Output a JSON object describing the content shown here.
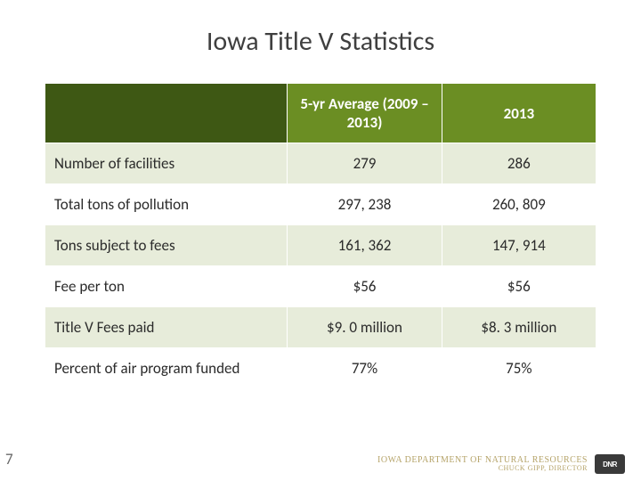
{
  "title": "Iowa Title V Statistics",
  "page_number": "7",
  "table": {
    "header_bg": "#6b8e23",
    "header_blank_bg": "#3e5814",
    "row_alt_bg_light": "#e7ecda",
    "row_alt_bg_white": "#ffffff",
    "border_color": "#ffffff",
    "title_fontsize": 30,
    "header_fontsize": 17,
    "cell_fontsize": 17,
    "columns": [
      {
        "label": "",
        "key": "label"
      },
      {
        "label": "5-yr Average (2009 – 2013)",
        "key": "avg"
      },
      {
        "label": "2013",
        "key": "y2013"
      }
    ],
    "rows": [
      {
        "label": "Number of facilities",
        "avg": "279",
        "y2013": "286"
      },
      {
        "label": "Total tons of pollution",
        "avg": "297, 238",
        "y2013": "260, 809"
      },
      {
        "label": "Tons subject to fees",
        "avg": "161, 362",
        "y2013": "147, 914"
      },
      {
        "label": "Fee per ton",
        "avg": "$56",
        "y2013": "$56"
      },
      {
        "label": "Title V Fees paid",
        "avg": "$9. 0 million",
        "y2013": "$8. 3 million"
      },
      {
        "label": "Percent of air program funded",
        "avg": "77%",
        "y2013": "75%"
      }
    ]
  },
  "footer": {
    "line1": "IOWA DEPARTMENT OF NATURAL RESOURCES",
    "line2": "CHUCK GIPP, DIRECTOR",
    "text_color": "#b6a46a",
    "line1_fontsize": 10,
    "line2_fontsize": 8,
    "logo_text": "DNR"
  },
  "page_num_fontsize": 17
}
